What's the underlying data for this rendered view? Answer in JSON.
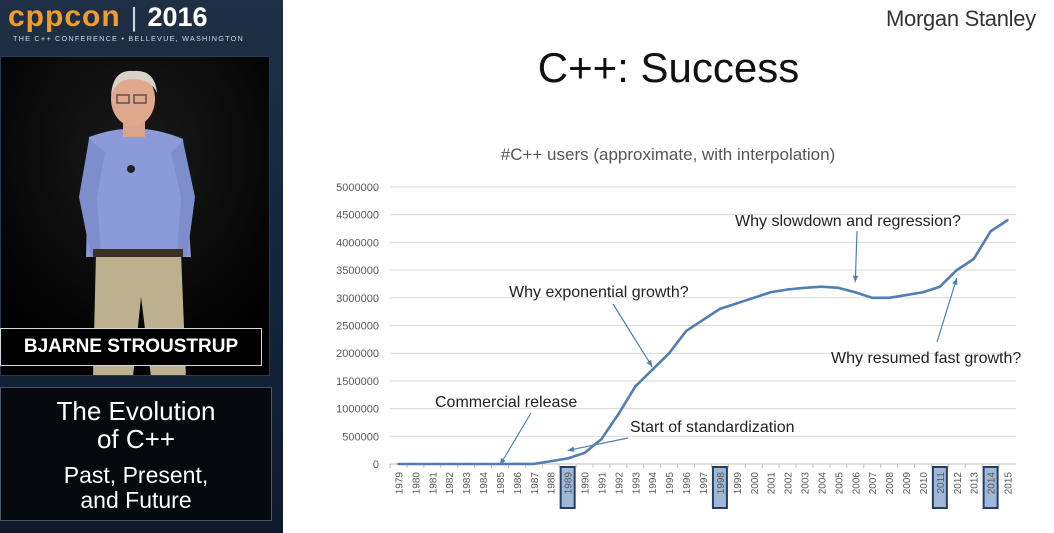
{
  "conference": {
    "logo_text": "cppcon",
    "separator": "|",
    "year": "2016",
    "tagline": "THE C++ CONFERENCE • BELLEVUE, WASHINGTON"
  },
  "speaker": {
    "name": "BJARNE STROUSTRUP"
  },
  "talk": {
    "title_line1": "The Evolution",
    "title_line2": "of C++",
    "subtitle_line1": "Past, Present,",
    "subtitle_line2": "and Future"
  },
  "slide": {
    "brand": "Morgan Stanley",
    "title": "C++: Success"
  },
  "colors": {
    "line": "#4f7fb4",
    "highlight_fill": "#9fb8d6",
    "highlight_border": "#243e63",
    "grid": "#d9d9d9"
  },
  "chart_data": {
    "type": "line",
    "title": "#C++ users (approximate, with interpolation)",
    "xlabel": "",
    "ylabel": "",
    "ylim": [
      0,
      5000000
    ],
    "y_ticks": [
      0,
      500000,
      1000000,
      1500000,
      2000000,
      2500000,
      3000000,
      3500000,
      4000000,
      4500000,
      5000000
    ],
    "categories": [
      "1979",
      "1980",
      "1981",
      "1982",
      "1983",
      "1984",
      "1985",
      "1986",
      "1987",
      "1988",
      "1989",
      "1990",
      "1991",
      "1992",
      "1993",
      "1994",
      "1995",
      "1996",
      "1997",
      "1998",
      "1999",
      "2000",
      "2001",
      "2002",
      "2003",
      "2004",
      "2005",
      "2006",
      "2007",
      "2008",
      "2009",
      "2010",
      "2011",
      "2012",
      "2013",
      "2014",
      "2015"
    ],
    "highlighted_years": [
      "1989",
      "1998",
      "2011",
      "2014"
    ],
    "series": [
      {
        "name": "#C++ users",
        "values": [
          1,
          2,
          4,
          8,
          15,
          25,
          50,
          500,
          1000,
          50000,
          100000,
          200000,
          450000,
          900000,
          1400000,
          1700000,
          2000000,
          2400000,
          2600000,
          2800000,
          2900000,
          3000000,
          3100000,
          3150000,
          3180000,
          3200000,
          3180000,
          3100000,
          3000000,
          3000000,
          3050000,
          3100000,
          3200000,
          3500000,
          3700000,
          4200000,
          4400000
        ]
      }
    ],
    "annotations": [
      {
        "text": "Commercial release",
        "target_year": "1985"
      },
      {
        "text": "Start of standardization",
        "target_year": "1989"
      },
      {
        "text": "Why exponential growth?",
        "target_year": "1994"
      },
      {
        "text": "Why slowdown and regression?",
        "target_year": "2006"
      },
      {
        "text": "Why resumed fast growth?",
        "target_year": "2012"
      }
    ]
  }
}
